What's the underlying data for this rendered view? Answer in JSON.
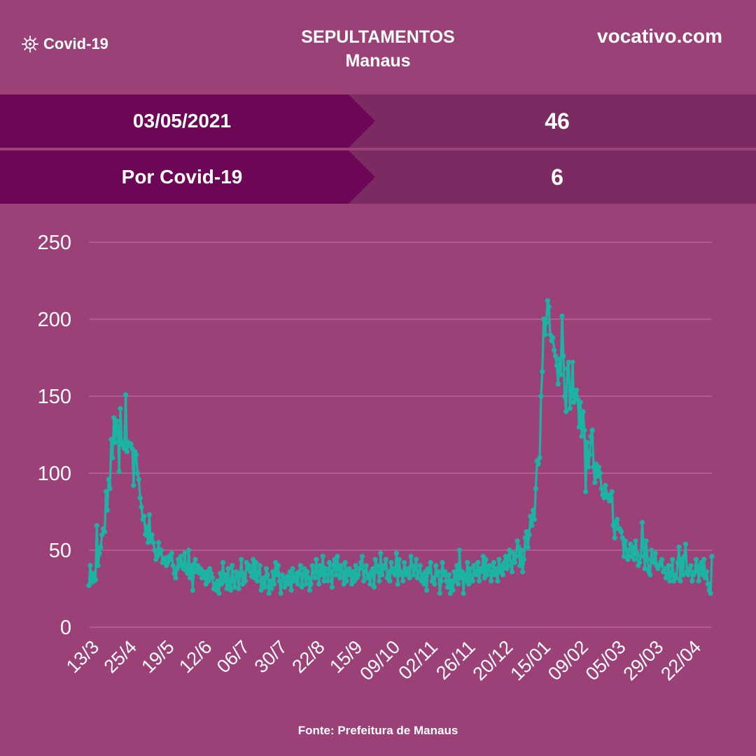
{
  "header": {
    "brand": "Covid-19",
    "title": "SEPULTAMENTOS",
    "subtitle": "Manaus",
    "site": "vocativo.com"
  },
  "summary": [
    {
      "label": "03/05/2021",
      "value": "46"
    },
    {
      "label": "Por Covid-19",
      "value": "6"
    }
  ],
  "footer": {
    "source": "Fonte:  Prefeitura de Manaus"
  },
  "colors": {
    "background": "#9b4178",
    "label_dark": "#6e0657",
    "value_bg": "#7b2a62",
    "line": "#1cb3a5",
    "grid": "#c27aa8"
  },
  "chart_data": {
    "type": "line",
    "title": "",
    "xlabel": "",
    "ylabel": "",
    "ylim": [
      0,
      250
    ],
    "yticks": [
      0,
      50,
      100,
      150,
      200,
      250
    ],
    "grid": true,
    "xtick_labels": [
      "13/3",
      "25/4",
      "19/5",
      "12/6",
      "06/7",
      "30/7",
      "22/8",
      "15/9",
      "09/10",
      "02/11",
      "26/11",
      "20/12",
      "15/01",
      "09/02",
      "05/03",
      "29/03",
      "22/04"
    ],
    "series": [
      {
        "values": [
          27,
          40,
          29,
          35,
          30,
          31,
          66,
          40,
          48,
          52,
          60,
          64,
          62,
          88,
          76,
          96,
          90,
          122,
          110,
          136,
          120,
          134,
          130,
          101,
          142,
          120,
          118,
          116,
          151,
          114,
          120,
          118,
          119,
          116,
          92,
          114,
          112,
          100,
          96,
          84,
          78,
          70,
          72,
          60,
          65,
          55,
          73,
          56,
          60,
          55,
          50,
          44,
          46,
          55,
          48,
          50,
          42,
          44,
          45,
          40,
          42,
          46,
          44,
          48,
          40,
          35,
          32,
          38,
          44,
          40,
          46,
          40,
          38,
          48,
          37,
          35,
          50,
          32,
          40,
          24,
          41,
          44,
          36,
          40,
          35,
          38,
          32,
          36,
          33,
          28,
          36,
          30,
          38,
          35,
          32,
          25,
          28,
          24,
          30,
          22,
          35,
          28,
          42,
          30,
          34,
          25,
          38,
          28,
          24,
          40,
          30,
          26,
          36,
          33,
          25,
          35,
          44,
          28,
          35,
          30,
          42,
          38,
          40,
          36,
          33,
          44,
          32,
          42,
          30,
          36,
          40,
          24,
          28,
          32,
          26,
          38,
          34,
          22,
          30,
          25,
          36,
          28,
          42,
          34,
          40,
          30,
          22,
          34,
          32,
          26,
          30,
          33,
          28,
          36,
          24,
          38,
          30,
          32,
          35,
          28,
          36,
          40,
          26,
          34,
          38,
          28,
          36,
          32,
          24,
          28,
          40,
          36,
          32,
          44,
          36,
          28,
          40,
          34,
          46,
          30,
          38,
          34,
          30,
          42,
          36,
          26,
          40,
          44,
          34,
          46,
          38,
          32,
          40,
          36,
          28,
          42,
          30,
          36,
          38,
          34,
          28,
          36,
          30,
          40,
          32,
          34,
          38,
          42,
          46,
          30,
          36,
          40,
          32,
          34,
          28,
          36,
          38,
          26,
          44,
          40,
          36,
          30,
          48,
          34,
          38,
          40,
          44,
          32,
          36,
          30,
          42,
          36,
          38,
          34,
          48,
          28,
          44,
          36,
          34,
          30,
          42,
          36,
          34,
          38,
          32,
          46,
          40,
          34,
          38,
          44,
          32,
          36,
          40,
          30,
          34,
          28,
          36,
          24,
          38,
          36,
          42,
          30,
          32,
          28,
          40,
          34,
          36,
          22,
          30,
          42,
          34,
          36,
          30,
          26,
          34,
          22,
          30,
          24,
          36,
          30,
          40,
          28,
          50,
          32,
          36,
          22,
          34,
          30,
          42,
          28,
          38,
          32,
          30,
          40,
          36,
          34,
          42,
          30,
          38,
          36,
          46,
          32,
          44,
          34,
          38,
          40,
          30,
          36,
          42,
          34,
          38,
          30,
          44,
          36,
          40,
          34,
          42,
          46,
          38,
          44,
          50,
          40,
          36,
          48,
          42,
          46,
          56,
          52,
          40,
          50,
          36,
          44,
          58,
          62,
          52,
          60,
          72,
          66,
          76,
          70,
          90,
          108,
          106,
          110,
          150,
          166,
          200,
          190,
          198,
          212,
          208,
          190,
          186,
          188,
          180,
          176,
          170,
          158,
          174,
          164,
          202,
          176,
          150,
          140,
          168,
          172,
          142,
          150,
          172,
          146,
          150,
          154,
          148,
          130,
          146,
          124,
          140,
          128,
          88,
          120,
          104,
          112,
          124,
          128,
          104,
          94,
          106,
          98,
          104,
          100,
          90,
          86,
          84,
          92,
          86,
          84,
          82,
          86,
          88,
          66,
          58,
          68,
          70,
          64,
          64,
          62,
          58,
          46,
          56,
          50,
          44,
          50,
          54,
          46,
          52,
          44,
          56,
          48,
          40,
          42,
          46,
          68,
          52,
          38,
          56,
          44,
          36,
          34,
          50,
          44,
          42,
          48,
          40,
          38,
          40,
          42,
          44,
          36,
          38,
          32,
          34,
          40,
          30,
          34,
          44,
          30,
          34,
          32,
          42,
          52,
          30,
          44,
          34,
          46,
          54,
          36,
          34,
          38,
          40,
          30,
          34,
          36,
          44,
          40,
          30,
          38,
          42,
          34,
          44,
          32,
          36,
          28,
          24,
          22,
          46
        ]
      }
    ]
  }
}
